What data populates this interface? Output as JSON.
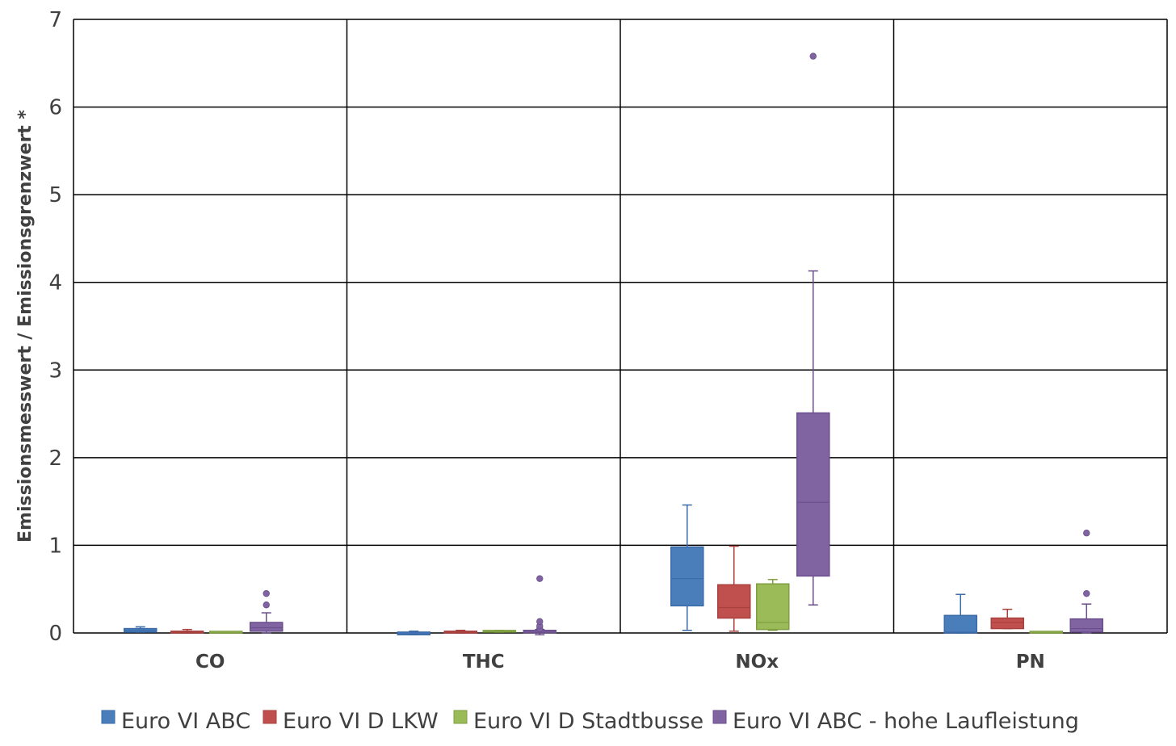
{
  "chart_data": {
    "type": "box",
    "title": "",
    "xlabel": "",
    "ylabel": "Emissionsmesswert / Emissionsgrenzwert *",
    "ylim": [
      0,
      7
    ],
    "yticks": [
      "0",
      "1",
      "2",
      "3",
      "4",
      "5",
      "6",
      "7"
    ],
    "grid": true,
    "legend_position": "bottom",
    "categories": [
      "CO",
      "THC",
      "NOx",
      "PN"
    ],
    "series": [
      {
        "name": "Euro VI ABC",
        "color": "#4a7ebb",
        "stroke": "#3a6aa8",
        "boxes": [
          {
            "min": 0.01,
            "q1": 0.01,
            "median": 0.03,
            "q3": 0.05,
            "max": 0.07,
            "outliers": []
          },
          {
            "min": -0.02,
            "q1": -0.02,
            "median": -0.01,
            "q3": 0.01,
            "max": 0.02,
            "outliers": []
          },
          {
            "min": 0.03,
            "q1": 0.31,
            "median": 0.62,
            "q3": 0.98,
            "max": 1.46,
            "outliers": []
          },
          {
            "min": 0.0,
            "q1": 0.0,
            "median": 0.01,
            "q3": 0.2,
            "max": 0.44,
            "outliers": []
          }
        ]
      },
      {
        "name": "Euro VI D LKW",
        "color": "#c0504d",
        "stroke": "#a8403d",
        "boxes": [
          {
            "min": 0.0,
            "q1": 0.0,
            "median": 0.01,
            "q3": 0.02,
            "max": 0.04,
            "outliers": []
          },
          {
            "min": 0.0,
            "q1": 0.0,
            "median": 0.01,
            "q3": 0.02,
            "max": 0.03,
            "outliers": []
          },
          {
            "min": 0.02,
            "q1": 0.17,
            "median": 0.29,
            "q3": 0.55,
            "max": 0.99,
            "outliers": []
          },
          {
            "min": 0.05,
            "q1": 0.05,
            "median": 0.12,
            "q3": 0.17,
            "max": 0.27,
            "outliers": []
          }
        ]
      },
      {
        "name": "Euro VI D Stadtbusse",
        "color": "#9bbb59",
        "stroke": "#7f9f40",
        "boxes": [
          {
            "min": 0.0,
            "q1": 0.0,
            "median": 0.0,
            "q3": 0.01,
            "max": 0.01,
            "outliers": []
          },
          {
            "min": 0.01,
            "q1": 0.01,
            "median": 0.02,
            "q3": 0.02,
            "max": 0.03,
            "outliers": []
          },
          {
            "min": 0.03,
            "q1": 0.04,
            "median": 0.12,
            "q3": 0.56,
            "max": 0.61,
            "outliers": []
          },
          {
            "min": 0.0,
            "q1": 0.0,
            "median": 0.0,
            "q3": 0.01,
            "max": 0.01,
            "outliers": []
          }
        ]
      },
      {
        "name": "Euro VI ABC - hohe Laufleistung",
        "color": "#8064a2",
        "stroke": "#6a4f8c",
        "boxes": [
          {
            "min": 0.0,
            "q1": 0.02,
            "median": 0.06,
            "q3": 0.12,
            "max": 0.23,
            "outliers": [
              0.32,
              0.45
            ]
          },
          {
            "min": -0.02,
            "q1": 0.0,
            "median": 0.01,
            "q3": 0.03,
            "max": 0.04,
            "outliers": [
              0.05,
              0.08,
              0.13,
              0.62
            ]
          },
          {
            "min": 0.32,
            "q1": 0.65,
            "median": 1.49,
            "q3": 2.51,
            "max": 4.13,
            "outliers": [
              6.58
            ]
          },
          {
            "min": 0.0,
            "q1": 0.01,
            "median": 0.05,
            "q3": 0.16,
            "max": 0.33,
            "outliers": [
              0.45,
              1.14
            ]
          }
        ]
      }
    ]
  }
}
